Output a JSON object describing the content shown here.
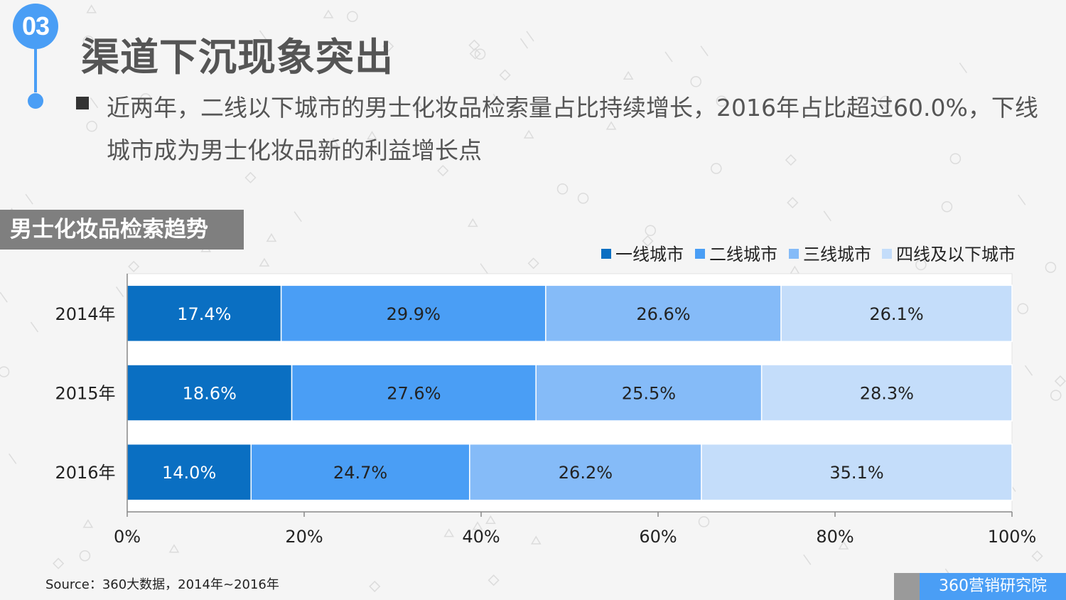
{
  "section_number": "03",
  "title": "渠道下沉现象突出",
  "bullet_text": "近两年，二线以下城市的男士化妆品检索量占比持续增长，2016年占比超过60.0%，下线城市成为男士化妆品新的利益增长点",
  "section_tag": "男士化妆品检索趋势",
  "source": "Source：360大数据，2014年~2016年",
  "logo_text": "360营销研究院",
  "colors": {
    "accent": "#4a9ef5",
    "series": [
      "#0a6fc2",
      "#4a9ef5",
      "#85bbf8",
      "#c4ddfa"
    ],
    "label_light": "#ffffff",
    "label_dark": "#222222"
  },
  "chart_data": {
    "type": "bar",
    "orientation": "horizontal",
    "stacked": true,
    "categories": [
      "2014年",
      "2015年",
      "2016年"
    ],
    "series": [
      {
        "name": "一线城市",
        "values": [
          17.4,
          18.6,
          14.0
        ],
        "labels": [
          "17.4%",
          "18.6%",
          "14.0%"
        ]
      },
      {
        "name": "二线城市",
        "values": [
          29.9,
          27.6,
          24.7
        ],
        "labels": [
          "29.9%",
          "27.6%",
          "24.7%"
        ]
      },
      {
        "name": "三线城市",
        "values": [
          26.6,
          25.5,
          26.2
        ],
        "labels": [
          "26.6%",
          "25.5%",
          "26.2%"
        ]
      },
      {
        "name": "四线及以下城市",
        "values": [
          26.1,
          28.3,
          35.1
        ],
        "labels": [
          "26.1%",
          "28.3%",
          "35.1%"
        ]
      }
    ],
    "xlim": [
      0,
      100
    ],
    "xticks": [
      "0%",
      "20%",
      "40%",
      "60%",
      "80%",
      "100%"
    ],
    "legend_position": "top-right",
    "grid": false
  }
}
